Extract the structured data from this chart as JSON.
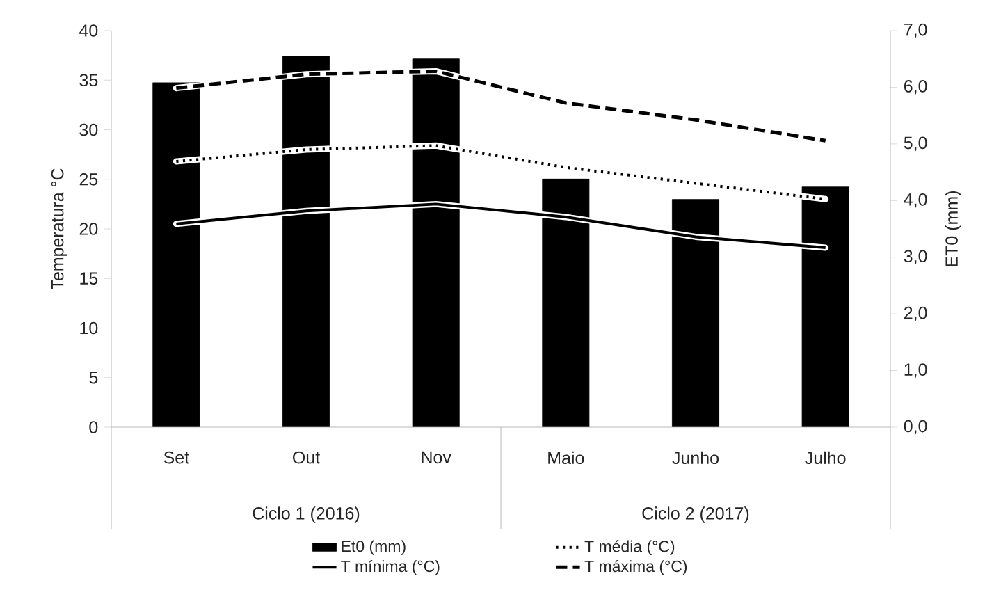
{
  "chart_data": {
    "type": "line",
    "categories": [
      "Set",
      "Out",
      "Nov",
      "Maio",
      "Junho",
      "Julho"
    ],
    "ylabel": "Temperatura °C",
    "y2label": "ET0 (mm)",
    "ylim": [
      0,
      40
    ],
    "yticks": [
      0,
      5,
      10,
      15,
      20,
      25,
      30,
      35,
      40
    ],
    "y2lim": [
      0,
      7
    ],
    "y2ticks": [
      {
        "value": 0,
        "label": "0,0"
      },
      {
        "value": 1,
        "label": "1,0"
      },
      {
        "value": 2,
        "label": "2,0"
      },
      {
        "value": 3,
        "label": "3,0"
      },
      {
        "value": 4,
        "label": "4,0"
      },
      {
        "value": 5,
        "label": "5,0"
      },
      {
        "value": 6,
        "label": "6,0"
      },
      {
        "value": 7,
        "label": "7,0"
      }
    ],
    "series": [
      {
        "name": "Et0 (mm)",
        "type": "bar",
        "axis": "y2",
        "color": "#000000",
        "values": [
          6.08,
          6.55,
          6.5,
          4.38,
          4.02,
          4.24
        ]
      },
      {
        "name": "T média (°C)",
        "line_style": "dotted",
        "color": "#000000",
        "values": [
          26.8,
          28.0,
          28.4,
          26.2,
          24.6,
          23.0
        ]
      },
      {
        "name": "T mínima (°C)",
        "line_style": "solid",
        "color": "#000000",
        "values": [
          20.5,
          21.8,
          22.5,
          21.2,
          19.2,
          18.1
        ]
      },
      {
        "name": "T máxima (°C)",
        "line_style": "dashed",
        "color": "#000000",
        "values": [
          34.2,
          35.6,
          35.9,
          32.7,
          31.0,
          28.9
        ]
      }
    ],
    "annotations": [
      "Ciclo 1  (2016)",
      "Ciclo 2  (2017)"
    ],
    "legend": "bottom",
    "marker": "none",
    "grid": false
  }
}
